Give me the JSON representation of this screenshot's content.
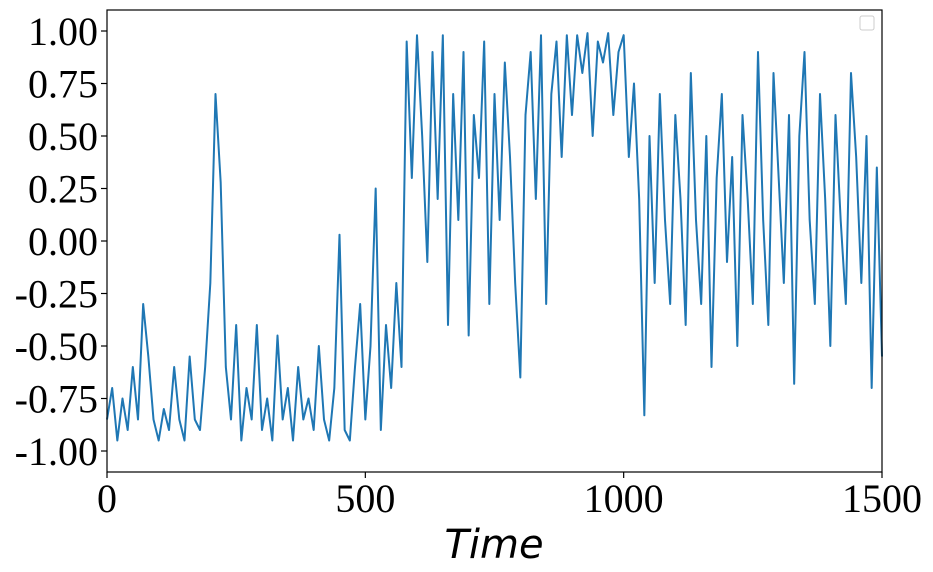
{
  "chart_data": {
    "type": "line",
    "xlabel": "Time",
    "x": [
      0,
      10,
      20,
      30,
      40,
      50,
      60,
      70,
      80,
      90,
      100,
      110,
      120,
      130,
      140,
      150,
      160,
      170,
      180,
      190,
      200,
      210,
      220,
      230,
      240,
      250,
      260,
      270,
      280,
      290,
      300,
      310,
      320,
      330,
      340,
      350,
      360,
      370,
      380,
      390,
      400,
      410,
      420,
      430,
      440,
      450,
      460,
      470,
      480,
      490,
      500,
      510,
      520,
      530,
      540,
      550,
      560,
      570,
      580,
      590,
      600,
      610,
      620,
      630,
      640,
      650,
      660,
      670,
      680,
      690,
      700,
      710,
      720,
      730,
      740,
      750,
      760,
      770,
      780,
      790,
      800,
      810,
      820,
      830,
      840,
      850,
      860,
      870,
      880,
      890,
      900,
      910,
      920,
      930,
      940,
      950,
      960,
      970,
      980,
      990,
      1000,
      1010,
      1020,
      1030,
      1040,
      1050,
      1060,
      1070,
      1080,
      1090,
      1100,
      1110,
      1120,
      1130,
      1140,
      1150,
      1160,
      1170,
      1180,
      1190,
      1200,
      1210,
      1220,
      1230,
      1240,
      1250,
      1260,
      1270,
      1280,
      1290,
      1300,
      1310,
      1320,
      1330,
      1340,
      1350,
      1360,
      1370,
      1380,
      1390,
      1400,
      1410,
      1420,
      1430,
      1440,
      1450,
      1460,
      1470,
      1480,
      1490,
      1500
    ],
    "series": [
      {
        "color": "#1f77b4",
        "values": [
          -0.85,
          -0.7,
          -0.95,
          -0.75,
          -0.9,
          -0.6,
          -0.85,
          -0.3,
          -0.55,
          -0.85,
          -0.95,
          -0.8,
          -0.9,
          -0.6,
          -0.85,
          -0.95,
          -0.55,
          -0.85,
          -0.9,
          -0.6,
          -0.2,
          0.7,
          0.28,
          -0.6,
          -0.85,
          -0.4,
          -0.95,
          -0.7,
          -0.85,
          -0.4,
          -0.9,
          -0.75,
          -0.95,
          -0.45,
          -0.85,
          -0.7,
          -0.95,
          -0.6,
          -0.85,
          -0.75,
          -0.9,
          -0.5,
          -0.85,
          -0.95,
          -0.7,
          0.03,
          -0.9,
          -0.95,
          -0.6,
          -0.3,
          -0.85,
          -0.5,
          0.25,
          -0.9,
          -0.4,
          -0.7,
          -0.2,
          -0.6,
          0.95,
          0.3,
          0.98,
          0.5,
          -0.1,
          0.9,
          0.2,
          0.98,
          -0.4,
          0.7,
          0.1,
          0.9,
          -0.45,
          0.6,
          0.3,
          0.95,
          -0.3,
          0.7,
          0.1,
          0.85,
          0.4,
          -0.2,
          -0.65,
          0.6,
          0.9,
          0.2,
          0.98,
          -0.3,
          0.7,
          0.95,
          0.4,
          0.98,
          0.6,
          0.98,
          0.8,
          0.99,
          0.5,
          0.95,
          0.85,
          0.99,
          0.6,
          0.9,
          0.98,
          0.4,
          0.75,
          0.2,
          -0.83,
          0.5,
          -0.2,
          0.7,
          0.1,
          -0.3,
          0.6,
          0.2,
          -0.4,
          0.8,
          0.1,
          -0.3,
          0.5,
          -0.6,
          0.3,
          0.7,
          -0.1,
          0.4,
          -0.5,
          0.6,
          0.2,
          -0.3,
          0.9,
          0.1,
          -0.4,
          0.8,
          0.3,
          -0.2,
          0.6,
          -0.68,
          0.5,
          0.9,
          0.1,
          -0.3,
          0.7,
          0.2,
          -0.5,
          0.6,
          0.1,
          -0.3,
          0.8,
          0.4,
          -0.2,
          0.5,
          -0.7,
          0.35,
          -0.55
        ]
      }
    ],
    "xlim": [
      0,
      1500
    ],
    "xticks": [
      0,
      500,
      1000,
      1500
    ],
    "ylim": [
      -1.1,
      1.1
    ],
    "yticks": [
      {
        "value": -1,
        "label": "-1.00"
      },
      {
        "value": -0.75,
        "label": "-0.75"
      },
      {
        "value": -0.5,
        "label": "-0.50"
      },
      {
        "value": -0.25,
        "label": "-0.25"
      },
      {
        "value": 0,
        "label": "0.00"
      },
      {
        "value": 0.25,
        "label": "0.25"
      },
      {
        "value": 0.5,
        "label": "0.50"
      },
      {
        "value": 0.75,
        "label": "0.75"
      },
      {
        "value": 1,
        "label": "1.00"
      }
    ]
  }
}
